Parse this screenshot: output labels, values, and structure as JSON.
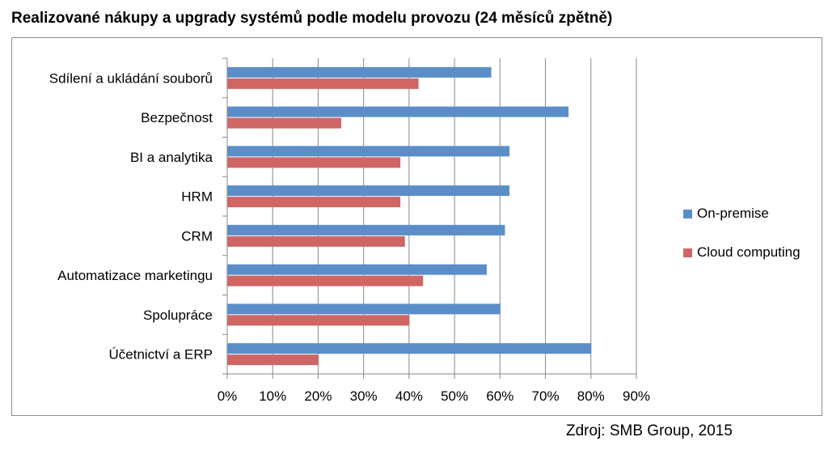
{
  "chart_data": {
    "type": "bar",
    "orientation": "horizontal",
    "title": "Realizované nákupy a upgrady systémů podle modelu provozu (24 měsíců zpětně)",
    "categories": [
      "Sdílení a ukládání souborů",
      "Bezpečnost",
      "BI a analytika",
      "HRM",
      "CRM",
      "Automatizace marketingu",
      "Spolupráce",
      "Účetnictví a ERP"
    ],
    "series": [
      {
        "name": "On-premise",
        "color": "#5b8ec9",
        "values": [
          58,
          75,
          62,
          62,
          61,
          57,
          60,
          80
        ]
      },
      {
        "name": "Cloud computing",
        "color": "#cf6664",
        "values": [
          42,
          25,
          38,
          38,
          39,
          43,
          40,
          20
        ]
      }
    ],
    "xlim": [
      0,
      90
    ],
    "xticks": [
      0,
      10,
      20,
      30,
      40,
      50,
      60,
      70,
      80,
      90
    ],
    "tick_format": "%",
    "grid": "vertical",
    "legend_position": "right"
  },
  "source": "Zdroj: SMB Group, 2015"
}
